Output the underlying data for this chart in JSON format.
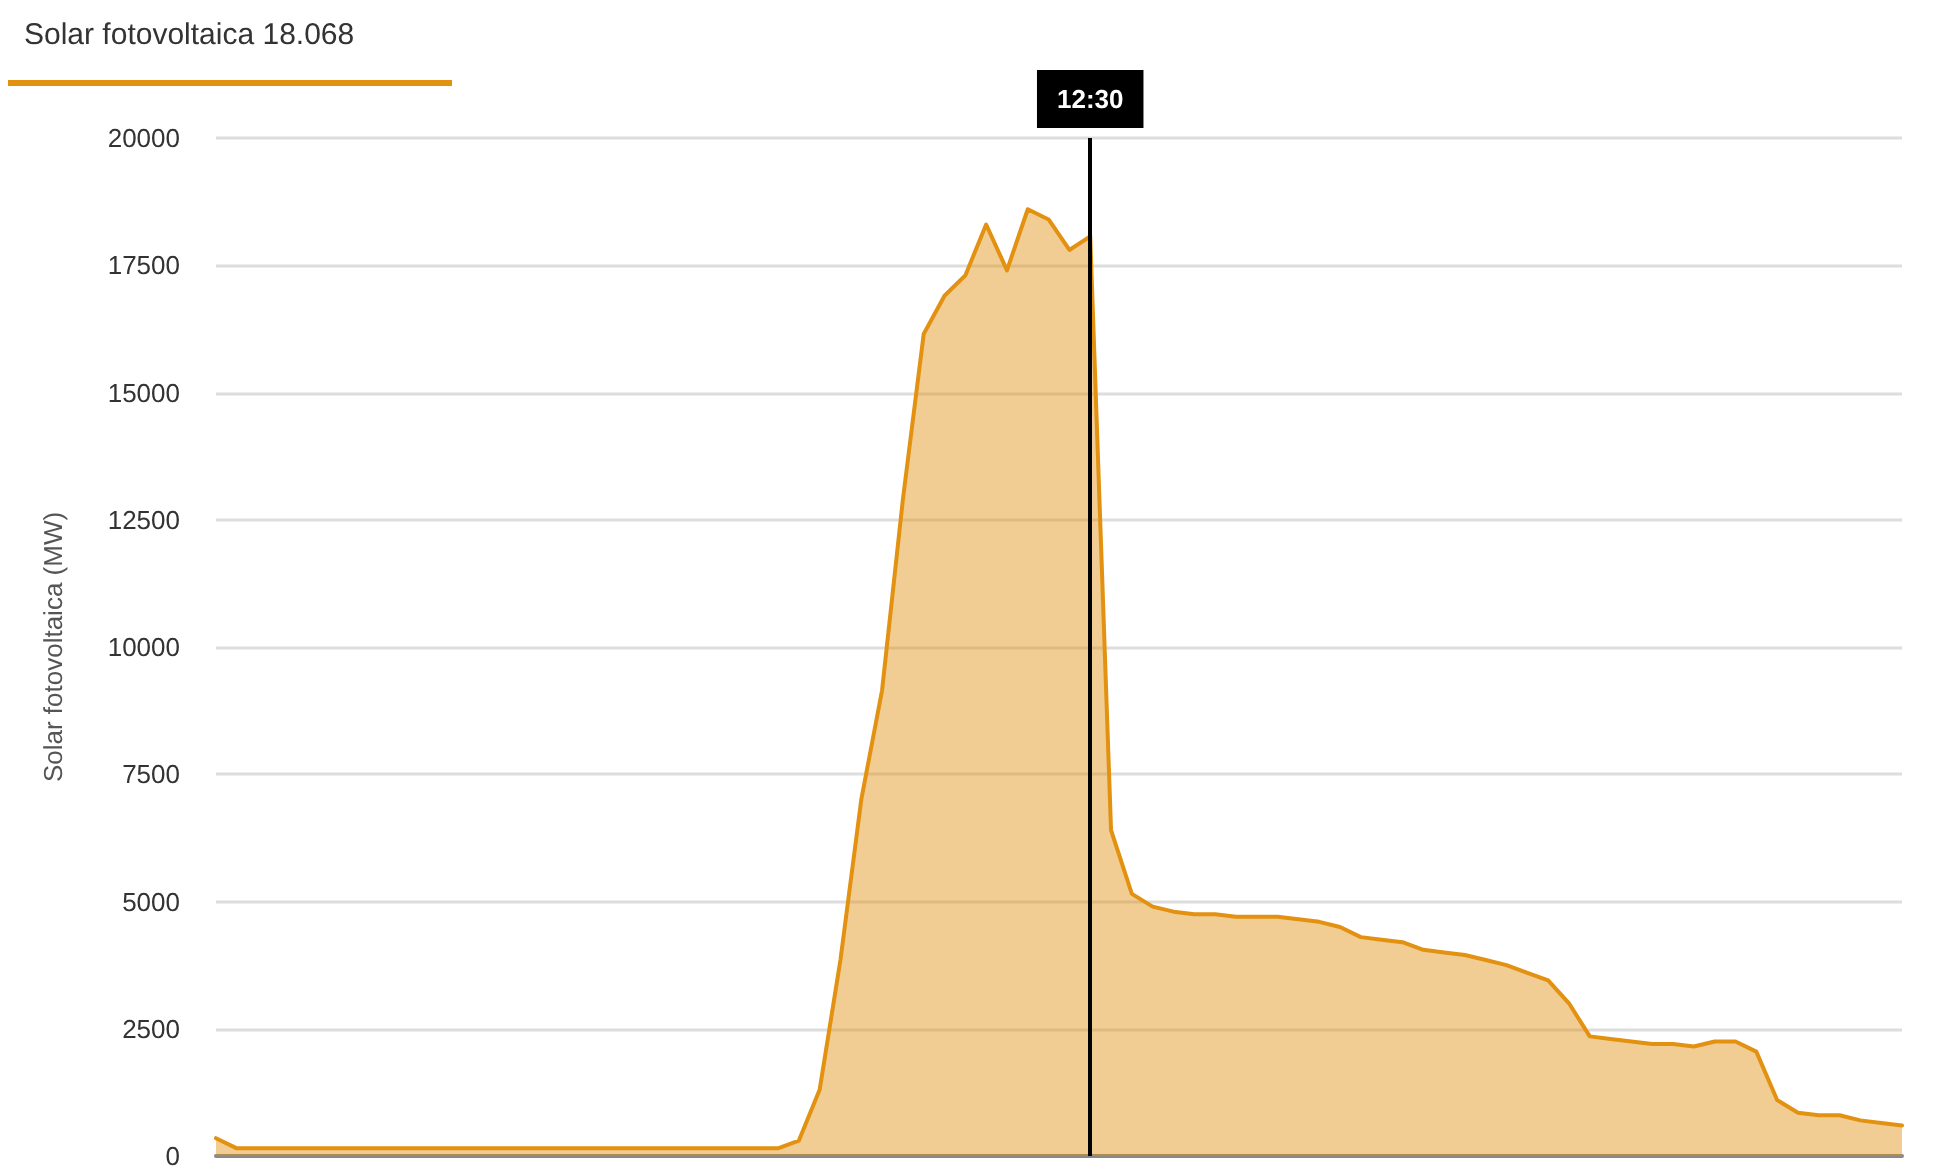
{
  "chart_data": {
    "type": "area",
    "ylabel": "Solar fotovoltaica (MW)",
    "categories": [
      null,
      null,
      null,
      null,
      null,
      null,
      null,
      null,
      null,
      null,
      null,
      null,
      null,
      null,
      null,
      null,
      null,
      null,
      null,
      null,
      null,
      null,
      null,
      null,
      null,
      null,
      null,
      null,
      null,
      null,
      null,
      null,
      null,
      null,
      null,
      null,
      null,
      null,
      null,
      null,
      null,
      null,
      null,
      null,
      null,
      null,
      null,
      null,
      null,
      null,
      null,
      null,
      null,
      null,
      null,
      null,
      null,
      null,
      null,
      null,
      null,
      null,
      null,
      null,
      null,
      null,
      null,
      null,
      null,
      null,
      null,
      null,
      null,
      null,
      null,
      null,
      null,
      null,
      null,
      null,
      null,
      null
    ],
    "series": [
      {
        "name": "Solar fotovoltaica",
        "color": "#e39110",
        "values": [
          350,
          150,
          150,
          150,
          150,
          150,
          150,
          150,
          150,
          150,
          150,
          150,
          150,
          150,
          150,
          150,
          150,
          150,
          150,
          150,
          150,
          150,
          150,
          150,
          150,
          150,
          150,
          150,
          300,
          1300,
          3850,
          7000,
          9150,
          12900,
          16150,
          16900,
          17300,
          18300,
          17400,
          18600,
          18400,
          17800,
          18068,
          6400,
          5150,
          4900,
          4800,
          4750,
          4750,
          4700,
          4700,
          4700,
          4650,
          4600,
          4500,
          4300,
          4250,
          4200,
          4050,
          4000,
          3950,
          3850,
          3750,
          3600,
          3450,
          3000,
          2350,
          2300,
          2250,
          2200,
          2200,
          2150,
          2250,
          2250,
          2050,
          1100,
          850,
          800,
          800,
          700,
          650,
          600
        ]
      }
    ],
    "annotations": [
      "18.068",
      "12:30"
    ],
    "ylim": [
      0,
      20000
    ],
    "yticks": [
      0,
      2500,
      5000,
      7500,
      10000,
      12500,
      15000,
      17500,
      20000
    ],
    "grid": "y",
    "tick_labels": "y",
    "marker": "none"
  }
}
